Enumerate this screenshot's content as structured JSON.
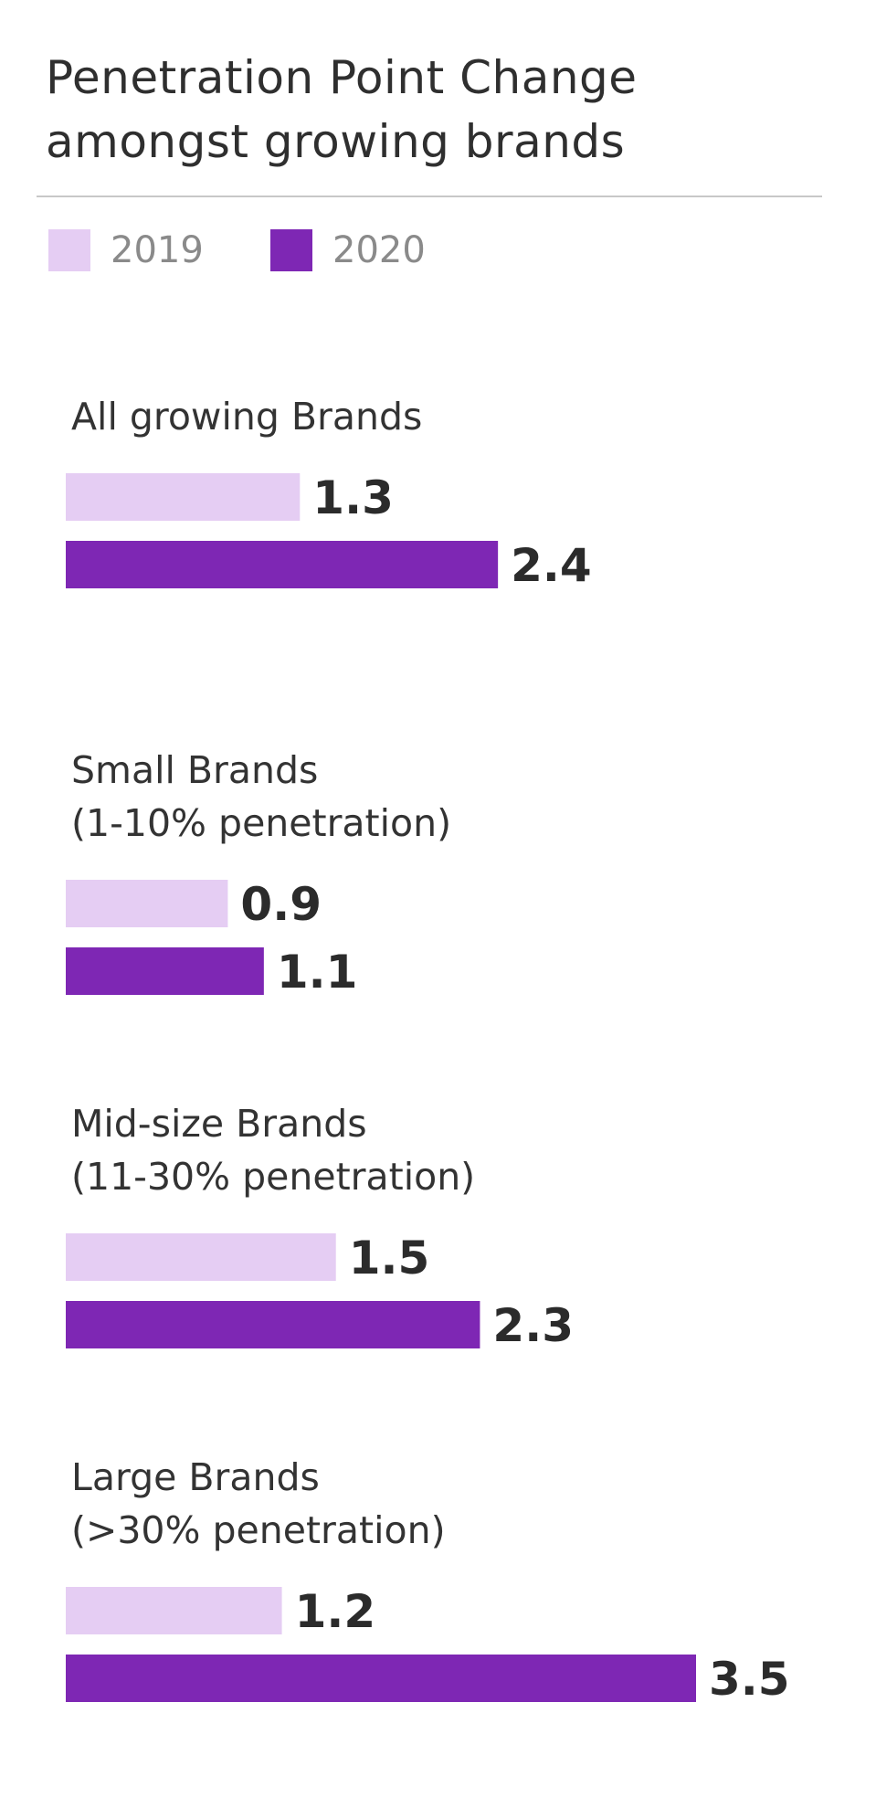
{
  "title": "Penetration Point Change amongst growing brands",
  "legend": [
    {
      "label": "2019",
      "color": "#e5cdf3"
    },
    {
      "label": "2020",
      "color": "#7e27b4"
    }
  ],
  "chart_data": {
    "type": "bar",
    "orientation": "horizontal",
    "title": "Penetration Point Change amongst growing brands",
    "categories": [
      [
        "All growing Brands"
      ],
      [
        "Small Brands",
        "(1-10% penetration)"
      ],
      [
        "Mid-size Brands",
        "(11-30% penetration)"
      ],
      [
        "Large Brands",
        "(>30% penetration)"
      ]
    ],
    "series": [
      {
        "name": "2019",
        "values": [
          1.3,
          0.9,
          1.5,
          1.2
        ],
        "color": "#e5cdf3"
      },
      {
        "name": "2020",
        "values": [
          2.4,
          1.1,
          2.3,
          3.5
        ],
        "color": "#7e27b4"
      }
    ],
    "value_labels": [
      [
        "1.3",
        "0.9",
        "1.5",
        "1.2"
      ],
      [
        "2.4",
        "1.1",
        "2.3",
        "3.5"
      ]
    ],
    "xlim": [
      0,
      3.5
    ],
    "grid": false,
    "legend_position": "top-left"
  }
}
